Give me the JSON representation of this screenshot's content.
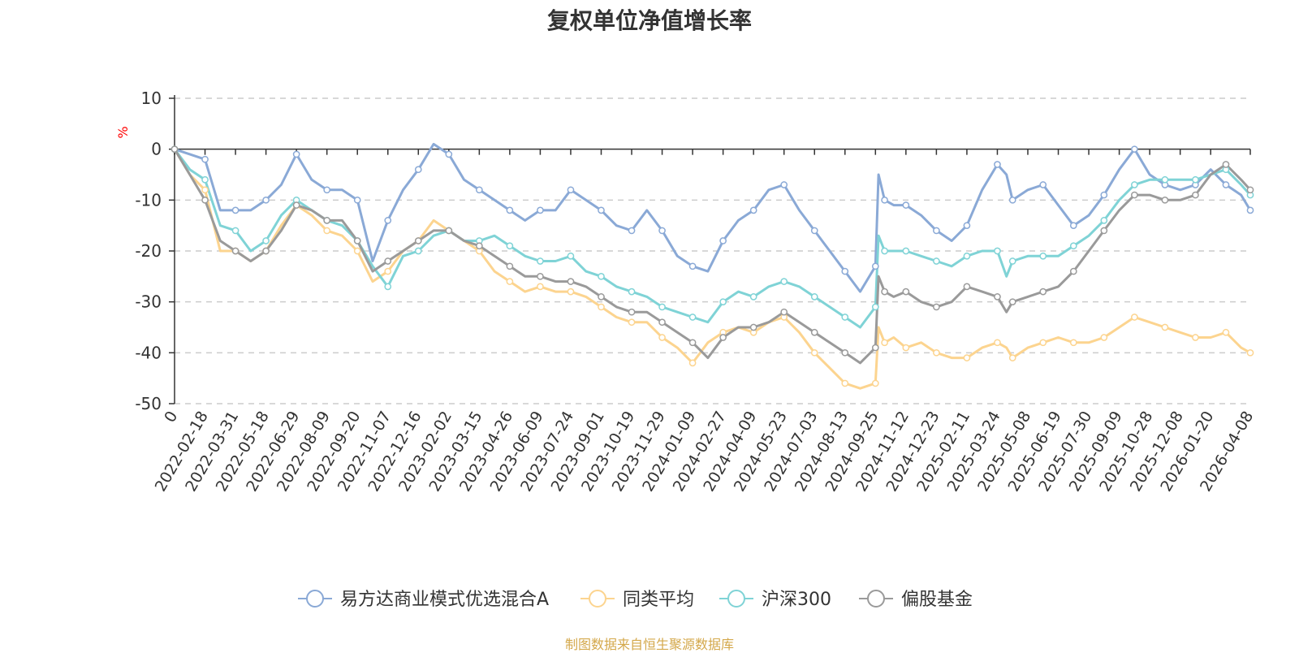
{
  "colors": {
    "fund": "#8aa9d6",
    "peer_avg": "#fcd48f",
    "hs300": "#7fd3d6",
    "equity_fund": "#9a9a9a",
    "axis": "#333333",
    "grid": "#cccccc",
    "unit": "#ff0000",
    "source": "#d4a84b"
  },
  "chart_data": {
    "type": "line",
    "title": "复权单位净值增长率",
    "ylabel": "%",
    "xlabel": "",
    "ylim": [
      -50,
      10
    ],
    "yticks": [
      10,
      0,
      -10,
      -20,
      -30,
      -40,
      -50
    ],
    "yticklabels": [
      "10",
      "0",
      "-10",
      "-20",
      "-30",
      "-40",
      "-50"
    ],
    "grid": true,
    "legend_position": "bottom-center",
    "x_ticks": [
      "0",
      "2022-02-18",
      "2022-03-31",
      "2022-05-18",
      "2022-06-29",
      "2022-08-09",
      "2022-09-20",
      "2022-11-07",
      "2022-12-16",
      "2023-02-02",
      "2023-03-15",
      "2023-04-26",
      "2023-06-09",
      "2023-07-24",
      "2023-09-01",
      "2023-10-19",
      "2023-11-29",
      "2024-01-09",
      "2024-02-27",
      "2024-04-09",
      "2024-05-23",
      "2024-07-03",
      "2024-08-13",
      "2024-09-25",
      "2024-11-12",
      "2024-12-23",
      "2025-02-11",
      "2025-03-24",
      "2025-05-08",
      "2025-06-19",
      "2025-07-30",
      "2025-09-09",
      "2025-10-28",
      "2025-12-08",
      "2026-01-20",
      "2026-04-08"
    ],
    "x_positions": [
      0,
      1,
      2,
      3,
      4,
      5,
      6,
      7,
      8,
      9,
      10,
      11,
      12,
      13,
      14,
      15,
      16,
      17,
      18,
      19,
      20,
      21,
      22,
      23,
      24,
      25,
      26,
      27,
      28,
      29,
      30,
      31,
      32,
      33,
      34,
      35.3
    ],
    "series": [
      {
        "name": "易方达商业模式优选混合A",
        "color_key": "fund",
        "x": [
          0,
          0.5,
          1,
          1.5,
          2,
          2.5,
          3,
          3.5,
          4,
          4.5,
          5,
          5.5,
          6,
          6.5,
          7,
          7.5,
          8,
          8.5,
          9,
          9.5,
          10,
          10.5,
          11,
          11.5,
          12,
          12.5,
          13,
          13.5,
          14,
          14.5,
          15,
          15.5,
          16,
          16.5,
          17,
          17.5,
          18,
          18.5,
          19,
          19.5,
          20,
          20.5,
          21,
          21.5,
          22,
          22.5,
          23,
          23.1,
          23.3,
          23.6,
          24,
          24.5,
          25,
          25.5,
          26,
          26.5,
          27,
          27.3,
          27.5,
          28,
          28.5,
          29,
          29.5,
          30,
          30.5,
          31,
          31.5,
          32,
          32.5,
          33,
          33.5,
          34,
          34.5,
          35,
          35.3
        ],
        "values": [
          0,
          -1,
          -2,
          -12,
          -12,
          -12,
          -10,
          -7,
          -1,
          -6,
          -8,
          -8,
          -10,
          -22,
          -14,
          -8,
          -4,
          1,
          -1,
          -6,
          -8,
          -10,
          -12,
          -14,
          -12,
          -12,
          -8,
          -10,
          -12,
          -15,
          -16,
          -12,
          -16,
          -21,
          -23,
          -24,
          -18,
          -14,
          -12,
          -8,
          -7,
          -12,
          -16,
          -20,
          -24,
          -28,
          -23,
          -5,
          -10,
          -11,
          -11,
          -13,
          -16,
          -18,
          -15,
          -8,
          -3,
          -5,
          -10,
          -8,
          -7,
          -11,
          -15,
          -13,
          -9,
          -4,
          0,
          -5,
          -7,
          -8,
          -7,
          -4,
          -7,
          -9,
          -12
        ]
      },
      {
        "name": "同类平均",
        "color_key": "peer_avg",
        "x": [
          0,
          0.5,
          1,
          1.5,
          2,
          2.5,
          3,
          3.5,
          4,
          4.5,
          5,
          5.5,
          6,
          6.5,
          7,
          7.5,
          8,
          8.5,
          9,
          9.5,
          10,
          10.5,
          11,
          11.5,
          12,
          12.5,
          13,
          13.5,
          14,
          14.5,
          15,
          15.5,
          16,
          16.5,
          17,
          17.5,
          18,
          18.5,
          19,
          19.5,
          20,
          20.5,
          21,
          21.5,
          22,
          22.5,
          23,
          23.1,
          23.3,
          23.6,
          24,
          24.5,
          25,
          25.5,
          26,
          26.5,
          27,
          27.3,
          27.5,
          28,
          28.5,
          29,
          29.5,
          30,
          30.5,
          31,
          31.5,
          32,
          32.5,
          33,
          33.5,
          34,
          34.5,
          35,
          35.3
        ],
        "values": [
          0,
          -5,
          -8,
          -20,
          -20,
          -22,
          -20,
          -15,
          -11,
          -13,
          -16,
          -17,
          -20,
          -26,
          -24,
          -20,
          -18,
          -14,
          -16,
          -18,
          -20,
          -24,
          -26,
          -28,
          -27,
          -28,
          -28,
          -29,
          -31,
          -33,
          -34,
          -34,
          -37,
          -39,
          -42,
          -38,
          -36,
          -35,
          -36,
          -34,
          -33,
          -36,
          -40,
          -43,
          -46,
          -47,
          -46,
          -35,
          -38,
          -37,
          -39,
          -38,
          -40,
          -41,
          -41,
          -39,
          -38,
          -39,
          -41,
          -39,
          -38,
          -37,
          -38,
          -38,
          -37,
          -35,
          -33,
          -34,
          -35,
          -36,
          -37,
          -37,
          -36,
          -39,
          -40
        ]
      },
      {
        "name": "沪深300",
        "color_key": "hs300",
        "x": [
          0,
          0.5,
          1,
          1.5,
          2,
          2.5,
          3,
          3.5,
          4,
          4.5,
          5,
          5.5,
          6,
          6.5,
          7,
          7.5,
          8,
          8.5,
          9,
          9.5,
          10,
          10.5,
          11,
          11.5,
          12,
          12.5,
          13,
          13.5,
          14,
          14.5,
          15,
          15.5,
          16,
          16.5,
          17,
          17.5,
          18,
          18.5,
          19,
          19.5,
          20,
          20.5,
          21,
          21.5,
          22,
          22.5,
          23,
          23.1,
          23.3,
          23.6,
          24,
          24.5,
          25,
          25.5,
          26,
          26.5,
          27,
          27.3,
          27.5,
          28,
          28.5,
          29,
          29.5,
          30,
          30.5,
          31,
          31.5,
          32,
          32.5,
          33,
          33.5,
          34,
          34.5,
          35,
          35.3
        ],
        "values": [
          0,
          -4,
          -6,
          -15,
          -16,
          -20,
          -18,
          -13,
          -10,
          -12,
          -14,
          -15,
          -18,
          -23,
          -27,
          -21,
          -20,
          -17,
          -16,
          -18,
          -18,
          -17,
          -19,
          -21,
          -22,
          -22,
          -21,
          -24,
          -25,
          -27,
          -28,
          -29,
          -31,
          -32,
          -33,
          -34,
          -30,
          -28,
          -29,
          -27,
          -26,
          -27,
          -29,
          -31,
          -33,
          -35,
          -31,
          -17,
          -20,
          -20,
          -20,
          -21,
          -22,
          -23,
          -21,
          -20,
          -20,
          -25,
          -22,
          -21,
          -21,
          -21,
          -19,
          -17,
          -14,
          -10,
          -7,
          -6,
          -6,
          -6,
          -6,
          -5,
          -4,
          -7,
          -9
        ]
      },
      {
        "name": "偏股基金",
        "color_key": "equity_fund",
        "x": [
          0,
          0.5,
          1,
          1.5,
          2,
          2.5,
          3,
          3.5,
          4,
          4.5,
          5,
          5.5,
          6,
          6.5,
          7,
          7.5,
          8,
          8.5,
          9,
          9.5,
          10,
          10.5,
          11,
          11.5,
          12,
          12.5,
          13,
          13.5,
          14,
          14.5,
          15,
          15.5,
          16,
          16.5,
          17,
          17.5,
          18,
          18.5,
          19,
          19.5,
          20,
          20.5,
          21,
          21.5,
          22,
          22.5,
          23,
          23.1,
          23.3,
          23.6,
          24,
          24.5,
          25,
          25.5,
          26,
          26.5,
          27,
          27.3,
          27.5,
          28,
          28.5,
          29,
          29.5,
          30,
          30.5,
          31,
          31.5,
          32,
          32.5,
          33,
          33.5,
          34,
          34.5,
          35,
          35.3
        ],
        "values": [
          0,
          -5,
          -10,
          -18,
          -20,
          -22,
          -20,
          -16,
          -11,
          -12,
          -14,
          -14,
          -18,
          -24,
          -22,
          -20,
          -18,
          -16,
          -16,
          -18,
          -19,
          -21,
          -23,
          -25,
          -25,
          -26,
          -26,
          -27,
          -29,
          -31,
          -32,
          -32,
          -34,
          -36,
          -38,
          -41,
          -37,
          -35,
          -35,
          -34,
          -32,
          -34,
          -36,
          -38,
          -40,
          -42,
          -39,
          -25,
          -28,
          -29,
          -28,
          -30,
          -31,
          -30,
          -27,
          -28,
          -29,
          -32,
          -30,
          -29,
          -28,
          -27,
          -24,
          -20,
          -16,
          -12,
          -9,
          -9,
          -10,
          -10,
          -9,
          -5,
          -3,
          -6,
          -8
        ]
      }
    ]
  },
  "source_note": "制图数据来自恒生聚源数据库"
}
